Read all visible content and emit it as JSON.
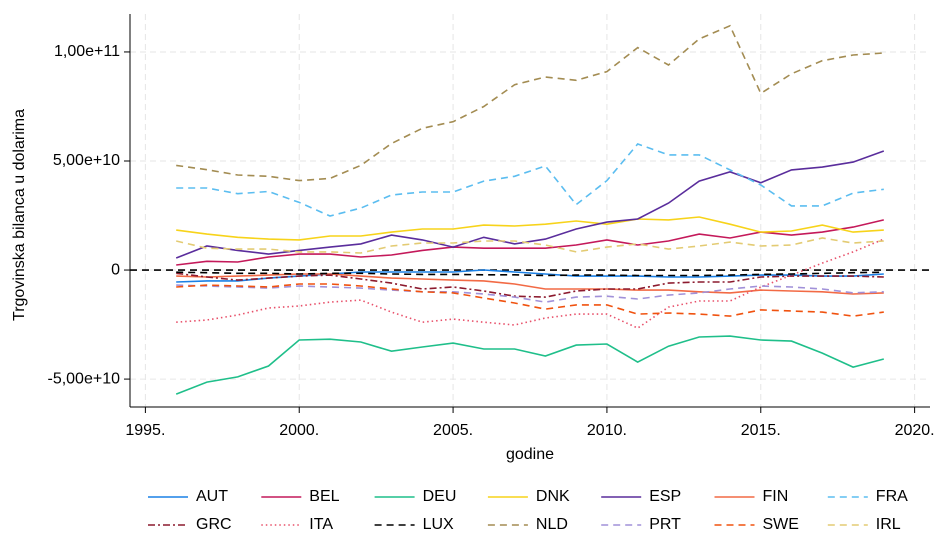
{
  "chart_data": {
    "type": "line",
    "x_label": "godine",
    "y_label": "Trgovinska bilanca u dolarima",
    "x": [
      1996,
      1997,
      1998,
      1999,
      2000,
      2001,
      2002,
      2003,
      2004,
      2005,
      2006,
      2007,
      2008,
      2009,
      2010,
      2011,
      2012,
      2013,
      2014,
      2015,
      2016,
      2017,
      2018,
      2019
    ],
    "xlim": [
      1994.5,
      2020.5
    ],
    "xticks": [
      {
        "value": 1995,
        "label": "1995."
      },
      {
        "value": 2000,
        "label": "2000."
      },
      {
        "value": 2005,
        "label": "2005."
      },
      {
        "value": 2010,
        "label": "2010."
      },
      {
        "value": 2015,
        "label": "2015."
      },
      {
        "value": 2020,
        "label": "2020."
      }
    ],
    "ylim": [
      -62800000000.0,
      117400000000.0
    ],
    "yticks": [
      {
        "value": -50000000000.0,
        "label": "-5,00e+10"
      },
      0,
      {
        "value": 50000000000.0,
        "label": "5,00e+10"
      },
      {
        "value": 100000000000.0,
        "label": "1,00e+11"
      }
    ],
    "grid": true,
    "legend": "bottom",
    "series": [
      {
        "name": "AUT",
        "color": "#1a80e6",
        "dash": "solid",
        "values": [
          -5500000000.0,
          -5000000000.0,
          -5000000000.0,
          -3700000000.0,
          -2800000000.0,
          -1800000000.0,
          -900000000.0,
          -900000000.0,
          -900000000.0,
          -900000000.0,
          0,
          -900000000.0,
          -1800000000.0,
          -2800000000.0,
          -2800000000.0,
          -2800000000.0,
          -3200000000.0,
          -3200000000.0,
          -2800000000.0,
          -2300000000.0,
          -2300000000.0,
          -2800000000.0,
          -2800000000.0,
          -1800000000.0
        ]
      },
      {
        "name": "BEL",
        "color": "#c4195a",
        "dash": "solid",
        "values": [
          2300000000.0,
          4000000000.0,
          3700000000.0,
          6000000000.0,
          7300000000.0,
          7300000000.0,
          6000000000.0,
          6900000000.0,
          9000000000.0,
          10500000000.0,
          10000000000.0,
          10000000000.0,
          10000000000.0,
          11500000000.0,
          13800000000.0,
          11500000000.0,
          13300000000.0,
          16500000000.0,
          14700000000.0,
          17400000000.0,
          16000000000.0,
          17400000000.0,
          19700000000.0,
          23000000000.0
        ]
      },
      {
        "name": "DEU",
        "color": "#1fbf8a",
        "dash": "solid",
        "values": [
          -56900000000.0,
          -51400000000.0,
          -49000000000.0,
          -44000000000.0,
          -32100000000.0,
          -31700000000.0,
          -33000000000.0,
          -37200000000.0,
          -35300000000.0,
          -33500000000.0,
          -36200000000.0,
          -36200000000.0,
          -39400000000.0,
          -34400000000.0,
          -33900000000.0,
          -42200000000.0,
          -34900000000.0,
          -30700000000.0,
          -30300000000.0,
          -32100000000.0,
          -32600000000.0,
          -38100000000.0,
          -44500000000.0,
          -40800000000.0
        ]
      },
      {
        "name": "DNK",
        "color": "#f7d31a",
        "dash": "solid",
        "values": [
          18300000000.0,
          16500000000.0,
          15000000000.0,
          14200000000.0,
          13800000000.0,
          15600000000.0,
          15600000000.0,
          17400000000.0,
          18800000000.0,
          18800000000.0,
          20600000000.0,
          20200000000.0,
          21000000000.0,
          22500000000.0,
          21000000000.0,
          23400000000.0,
          23000000000.0,
          24300000000.0,
          21000000000.0,
          17400000000.0,
          17900000000.0,
          20600000000.0,
          17400000000.0,
          18300000000.0
        ]
      },
      {
        "name": "ESP",
        "color": "#5a2d9c",
        "dash": "solid",
        "values": [
          5500000000.0,
          11000000000.0,
          9000000000.0,
          7300000000.0,
          9000000000.0,
          10500000000.0,
          12000000000.0,
          16000000000.0,
          13800000000.0,
          10500000000.0,
          15000000000.0,
          12000000000.0,
          14200000000.0,
          18800000000.0,
          22000000000.0,
          23400000000.0,
          30700000000.0,
          40800000000.0,
          45000000000.0,
          40000000000.0,
          45900000000.0,
          47200000000.0,
          49500000000.0,
          54600000000.0
        ]
      },
      {
        "name": "FIN",
        "color": "#f26a45",
        "dash": "solid",
        "values": [
          -2800000000.0,
          -3200000000.0,
          -2800000000.0,
          -2300000000.0,
          -1800000000.0,
          -1800000000.0,
          -2800000000.0,
          -3700000000.0,
          -4100000000.0,
          -4600000000.0,
          -5000000000.0,
          -6400000000.0,
          -8700000000.0,
          -8700000000.0,
          -8700000000.0,
          -9200000000.0,
          -9200000000.0,
          -10000000000.0,
          -10500000000.0,
          -9200000000.0,
          -9600000000.0,
          -10000000000.0,
          -11000000000.0,
          -10500000000.0
        ]
      },
      {
        "name": "FRA",
        "color": "#5bbdf0",
        "dash": "dash",
        "values": [
          37600000000.0,
          37600000000.0,
          35000000000.0,
          36000000000.0,
          31000000000.0,
          24800000000.0,
          28400000000.0,
          34400000000.0,
          35800000000.0,
          35800000000.0,
          40800000000.0,
          43000000000.0,
          47700000000.0,
          30000000000.0,
          41000000000.0,
          57800000000.0,
          52800000000.0,
          52800000000.0,
          45900000000.0,
          39000000000.0,
          29400000000.0,
          29400000000.0,
          35300000000.0,
          37000000000.0
        ]
      },
      {
        "name": "GRC",
        "color": "#8c1a2e",
        "dash": "dashdot",
        "values": [
          -1500000000.0,
          -3200000000.0,
          -4600000000.0,
          -3700000000.0,
          -2800000000.0,
          -2300000000.0,
          -4100000000.0,
          -6000000000.0,
          -8700000000.0,
          -7800000000.0,
          -9600000000.0,
          -12000000000.0,
          -12400000000.0,
          -9600000000.0,
          -8700000000.0,
          -8700000000.0,
          -6000000000.0,
          -5500000000.0,
          -5500000000.0,
          -3200000000.0,
          -2800000000.0,
          -2800000000.0,
          -2800000000.0,
          -3200000000.0
        ]
      },
      {
        "name": "ITA",
        "color": "#e8506a",
        "dash": "dot",
        "values": [
          -23900000000.0,
          -22900000000.0,
          -20600000000.0,
          -17400000000.0,
          -16500000000.0,
          -14700000000.0,
          -13800000000.0,
          -19300000000.0,
          -23900000000.0,
          -22500000000.0,
          -23900000000.0,
          -25200000000.0,
          -22000000000.0,
          -20200000000.0,
          -20200000000.0,
          -26600000000.0,
          -17000000000.0,
          -14200000000.0,
          -14200000000.0,
          -7800000000.0,
          -2300000000.0,
          3200000000.0,
          8300000000.0,
          14200000000.0
        ]
      },
      {
        "name": "LUX",
        "color": "#000000",
        "dash": "dash",
        "values": [
          -1000000000.0,
          -1200000000.0,
          -1500000000.0,
          -1500000000.0,
          -1800000000.0,
          -1500000000.0,
          -1500000000.0,
          -1800000000.0,
          -2000000000.0,
          -2000000000.0,
          -2200000000.0,
          -2200000000.0,
          -2500000000.0,
          -2300000000.0,
          -2300000000.0,
          -2500000000.0,
          -2500000000.0,
          -2500000000.0,
          -2300000000.0,
          -2000000000.0,
          -1800000000.0,
          -1500000000.0,
          -1200000000.0,
          -1000000000.0
        ]
      },
      {
        "name": "NLD",
        "color": "#a38c52",
        "dash": "dash",
        "values": [
          48000000000.0,
          46000000000.0,
          43600000000.0,
          43000000000.0,
          41000000000.0,
          42000000000.0,
          48000000000.0,
          58000000000.0,
          65000000000.0,
          68000000000.0,
          75000000000.0,
          85000000000.0,
          88500000000.0,
          87000000000.0,
          91000000000.0,
          102000000000.0,
          94000000000.0,
          106000000000.0,
          112000000000.0,
          81000000000.0,
          90000000000.0,
          96000000000.0,
          98600000000.0,
          99500000000.0
        ]
      },
      {
        "name": "PRT",
        "color": "#a191d9",
        "dash": "dash",
        "values": [
          -6900000000.0,
          -7300000000.0,
          -7800000000.0,
          -8300000000.0,
          -7300000000.0,
          -7800000000.0,
          -8300000000.0,
          -9200000000.0,
          -10000000000.0,
          -10000000000.0,
          -11000000000.0,
          -12400000000.0,
          -14700000000.0,
          -12400000000.0,
          -12000000000.0,
          -13300000000.0,
          -11500000000.0,
          -10500000000.0,
          -8700000000.0,
          -7300000000.0,
          -7800000000.0,
          -8700000000.0,
          -10500000000.0,
          -10000000000.0
        ]
      },
      {
        "name": "SWE",
        "color": "#f0520f",
        "dash": "dash",
        "values": [
          -7800000000.0,
          -6900000000.0,
          -7300000000.0,
          -7800000000.0,
          -6400000000.0,
          -6400000000.0,
          -7300000000.0,
          -8700000000.0,
          -10000000000.0,
          -10500000000.0,
          -12800000000.0,
          -15100000000.0,
          -17900000000.0,
          -16000000000.0,
          -16000000000.0,
          -20200000000.0,
          -19700000000.0,
          -20200000000.0,
          -21100000000.0,
          -18300000000.0,
          -18800000000.0,
          -19300000000.0,
          -21100000000.0,
          -19300000000.0
        ]
      },
      {
        "name": "IRL",
        "color": "#e3cb73",
        "dash": "dash",
        "values": [
          13300000000.0,
          10000000000.0,
          9600000000.0,
          9600000000.0,
          8300000000.0,
          8300000000.0,
          7800000000.0,
          11000000000.0,
          12400000000.0,
          12400000000.0,
          13300000000.0,
          13300000000.0,
          11500000000.0,
          8300000000.0,
          10500000000.0,
          12000000000.0,
          9600000000.0,
          11000000000.0,
          12800000000.0,
          11000000000.0,
          11500000000.0,
          14700000000.0,
          12400000000.0,
          13300000000.0
        ]
      }
    ]
  }
}
